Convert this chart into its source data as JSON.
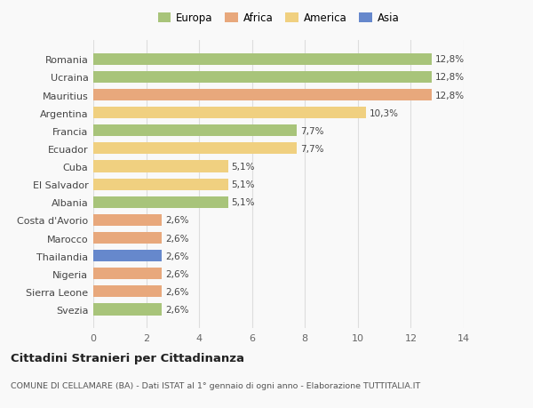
{
  "categories": [
    "Svezia",
    "Sierra Leone",
    "Nigeria",
    "Thailandia",
    "Marocco",
    "Costa d'Avorio",
    "Albania",
    "El Salvador",
    "Cuba",
    "Ecuador",
    "Francia",
    "Argentina",
    "Mauritius",
    "Ucraina",
    "Romania"
  ],
  "values": [
    2.6,
    2.6,
    2.6,
    2.6,
    2.6,
    2.6,
    5.1,
    5.1,
    5.1,
    7.7,
    7.7,
    10.3,
    12.8,
    12.8,
    12.8
  ],
  "labels": [
    "2,6%",
    "2,6%",
    "2,6%",
    "2,6%",
    "2,6%",
    "2,6%",
    "5,1%",
    "5,1%",
    "5,1%",
    "7,7%",
    "7,7%",
    "10,3%",
    "12,8%",
    "12,8%",
    "12,8%"
  ],
  "colors": [
    "#a8c47a",
    "#e8a87c",
    "#e8a87c",
    "#6688cc",
    "#e8a87c",
    "#e8a87c",
    "#a8c47a",
    "#f0d080",
    "#f0d080",
    "#f0d080",
    "#a8c47a",
    "#f0d080",
    "#e8a87c",
    "#a8c47a",
    "#a8c47a"
  ],
  "legend_labels": [
    "Europa",
    "Africa",
    "America",
    "Asia"
  ],
  "legend_colors": [
    "#a8c47a",
    "#e8a87c",
    "#f0d080",
    "#6688cc"
  ],
  "title": "Cittadini Stranieri per Cittadinanza",
  "subtitle": "COMUNE DI CELLAMARE (BA) - Dati ISTAT al 1° gennaio di ogni anno - Elaborazione TUTTITALIA.IT",
  "xlim": [
    0,
    14
  ],
  "xticks": [
    0,
    2,
    4,
    6,
    8,
    10,
    12,
    14
  ],
  "background_color": "#f9f9f9",
  "grid_color": "#dddddd"
}
